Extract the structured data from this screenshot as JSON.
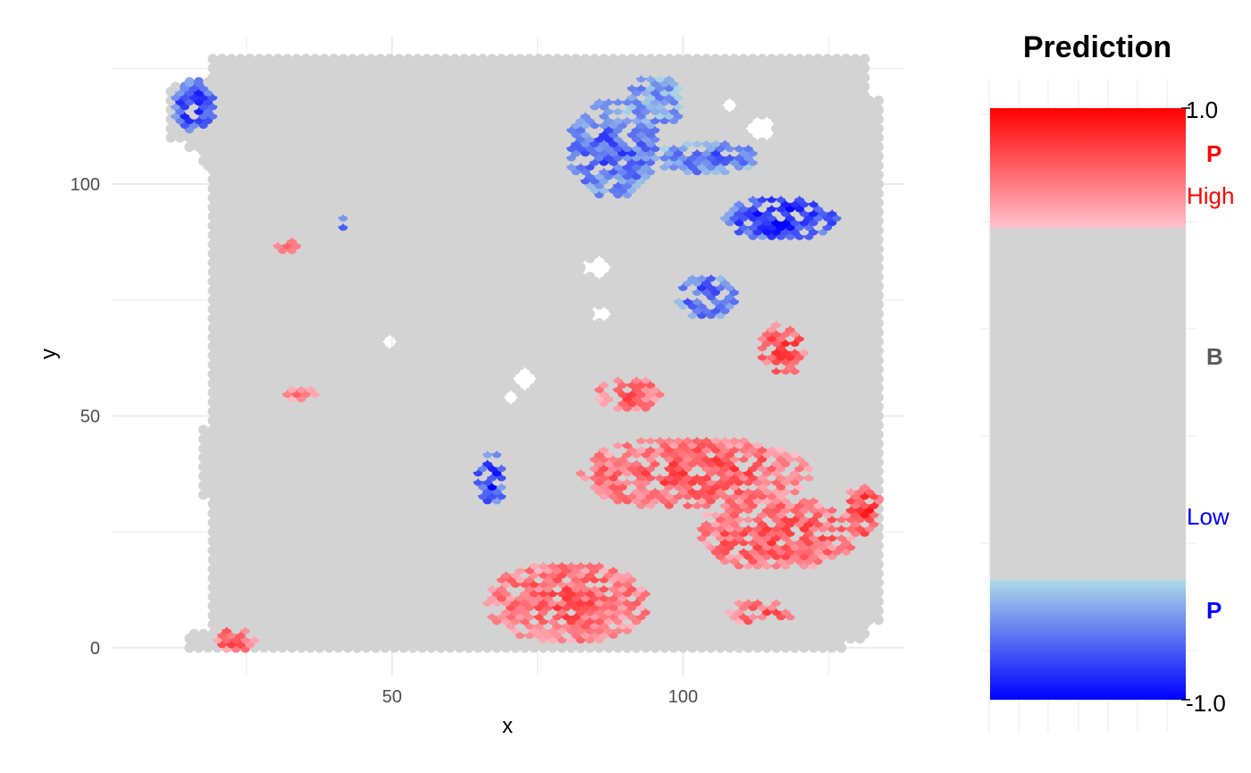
{
  "chart_data": {
    "type": "scatter",
    "title": "",
    "xlabel": "x",
    "ylabel": "y",
    "xlim": [
      2,
      138
    ],
    "ylim": [
      -6,
      132
    ],
    "x_ticks": [
      50,
      100
    ],
    "y_ticks": [
      0,
      50,
      100
    ],
    "grid": true,
    "colors": {
      "background_spot": "#d3d3d3",
      "high_light": "#ffc0cb",
      "high_full": "#ff0000",
      "low_light": "#add8e6",
      "low_full": "#0000ff",
      "grid": "#ebebeb"
    },
    "spot_grid": {
      "description_of_tissue": "hexagonal Visium-style spot array",
      "x_range": [
        12,
        134
      ],
      "y_range": [
        0,
        127
      ],
      "holes": [
        [
          113,
          112,
          2.5
        ],
        [
          108,
          117,
          1.8
        ],
        [
          85,
          82,
          2.2
        ],
        [
          86,
          72,
          1.6
        ],
        [
          50,
          66,
          1.2
        ],
        [
          73,
          58,
          2.2
        ],
        [
          70,
          54,
          1.4
        ]
      ]
    },
    "prediction_clusters": [
      {
        "sign": "low",
        "x": 88,
        "y": 108,
        "rx": 8,
        "ry": 11,
        "intensity": 0.55
      },
      {
        "sign": "low",
        "x": 95,
        "y": 118,
        "rx": 5,
        "ry": 6,
        "intensity": 0.3
      },
      {
        "sign": "low",
        "x": 104,
        "y": 106,
        "rx": 9,
        "ry": 3.5,
        "intensity": 0.5
      },
      {
        "sign": "low",
        "x": 117,
        "y": 93,
        "rx": 10,
        "ry": 5,
        "intensity": 0.85
      },
      {
        "sign": "low",
        "x": 104,
        "y": 76,
        "rx": 5,
        "ry": 5,
        "intensity": 0.6
      },
      {
        "sign": "low",
        "x": 16,
        "y": 117,
        "rx": 3.5,
        "ry": 6,
        "intensity": 0.75
      },
      {
        "sign": "low",
        "x": 67,
        "y": 37,
        "rx": 2.5,
        "ry": 6,
        "intensity": 0.8
      },
      {
        "sign": "low",
        "x": 42,
        "y": 92,
        "rx": 1.5,
        "ry": 1.5,
        "intensity": 0.5
      },
      {
        "sign": "high",
        "x": 102,
        "y": 38,
        "rx": 20,
        "ry": 8,
        "intensity": 0.55
      },
      {
        "sign": "high",
        "x": 80,
        "y": 10,
        "rx": 14,
        "ry": 9,
        "intensity": 0.5
      },
      {
        "sign": "high",
        "x": 116,
        "y": 25,
        "rx": 14,
        "ry": 8,
        "intensity": 0.55
      },
      {
        "sign": "high",
        "x": 117,
        "y": 65,
        "rx": 4,
        "ry": 6,
        "intensity": 0.65
      },
      {
        "sign": "high",
        "x": 91,
        "y": 55,
        "rx": 6,
        "ry": 3.5,
        "intensity": 0.5
      },
      {
        "sign": "high",
        "x": 113,
        "y": 8,
        "rx": 6,
        "ry": 3,
        "intensity": 0.5
      },
      {
        "sign": "high",
        "x": 131,
        "y": 30,
        "rx": 3,
        "ry": 6,
        "intensity": 0.7
      },
      {
        "sign": "high",
        "x": 23,
        "y": 2,
        "rx": 4,
        "ry": 3,
        "intensity": 0.5
      },
      {
        "sign": "high",
        "x": 35,
        "y": 55,
        "rx": 3,
        "ry": 2,
        "intensity": 0.3
      },
      {
        "sign": "high",
        "x": 32,
        "y": 87,
        "rx": 2,
        "ry": 2,
        "intensity": 0.3
      }
    ],
    "colorbar": {
      "title": "Prediction",
      "max_label": "1.0",
      "min_label": "-1.0",
      "high_region_label": "P",
      "high_threshold_label": "High",
      "neutral_label": "B",
      "low_threshold_label": "Low",
      "low_region_label": "P",
      "stops": [
        {
          "value": 1.0,
          "color": "#ff0000"
        },
        {
          "value": 0.6,
          "color": "#ffc0cb"
        },
        {
          "value": 0.59,
          "color": "#d3d3d3"
        },
        {
          "value": -0.59,
          "color": "#d3d3d3"
        },
        {
          "value": -0.6,
          "color": "#add8e6"
        },
        {
          "value": -1.0,
          "color": "#0000ff"
        }
      ]
    }
  }
}
